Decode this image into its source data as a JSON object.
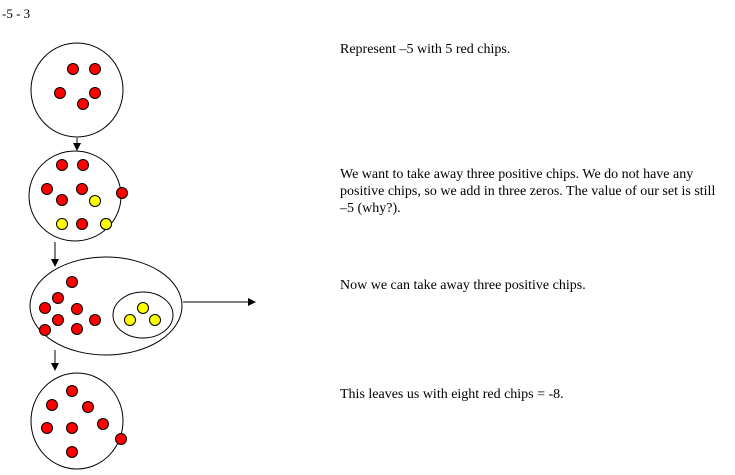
{
  "problem": "-5 - 3",
  "colors": {
    "red_chip": "#ff0000",
    "yellow_chip": "#ffff00",
    "outline": "#000000"
  },
  "steps": [
    {
      "text": "Represent –5 with 5 red chips.",
      "red_chips": 5,
      "yellow_chips": 0
    },
    {
      "text": "We want to take away three positive chips. We do not have any positive chips, so we add in three zeros. The value of our set is still –5 (why?).",
      "red_chips": 8,
      "yellow_chips": 3
    },
    {
      "text": "Now we can take away three positive chips.",
      "red_chips": 8,
      "yellow_chips": 3,
      "removed_yellow_chips": 3
    },
    {
      "text": "This leaves us with eight red chips = -8.",
      "red_chips": 8,
      "yellow_chips": 0
    }
  ]
}
